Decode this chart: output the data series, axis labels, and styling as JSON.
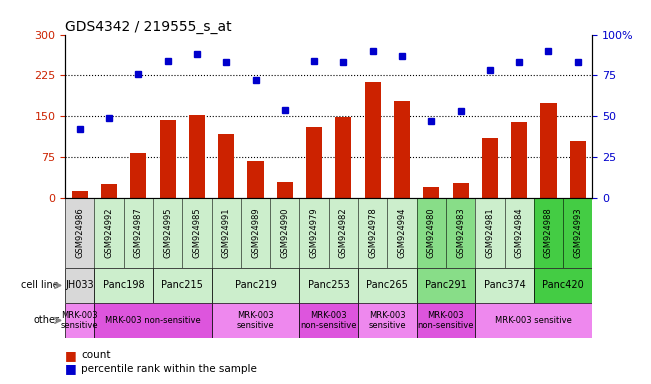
{
  "title": "GDS4342 / 219555_s_at",
  "samples": [
    "GSM924986",
    "GSM924992",
    "GSM924987",
    "GSM924995",
    "GSM924985",
    "GSM924991",
    "GSM924989",
    "GSM924990",
    "GSM924979",
    "GSM924982",
    "GSM924978",
    "GSM924994",
    "GSM924980",
    "GSM924983",
    "GSM924981",
    "GSM924984",
    "GSM924988",
    "GSM924993"
  ],
  "bar_values": [
    13,
    25,
    82,
    143,
    152,
    118,
    68,
    30,
    130,
    148,
    213,
    178,
    20,
    28,
    110,
    140,
    175,
    105
  ],
  "dot_values": [
    42,
    49,
    76,
    84,
    88,
    83,
    72,
    54,
    84,
    83,
    90,
    87,
    47,
    53,
    78,
    83,
    90,
    83
  ],
  "bar_color": "#cc2200",
  "dot_color": "#0000cc",
  "ylim_left": [
    0,
    300
  ],
  "ylim_right": [
    0,
    100
  ],
  "yticks_left": [
    0,
    75,
    150,
    225,
    300
  ],
  "yticks_right": [
    0,
    25,
    50,
    75,
    100
  ],
  "ytick_labels_left": [
    "0",
    "75",
    "150",
    "225",
    "300"
  ],
  "ytick_labels_right": [
    "0",
    "25",
    "50",
    "75",
    "100%"
  ],
  "hlines": [
    75,
    150,
    225
  ],
  "cell_line_order": [
    "JH033",
    "Panc198",
    "Panc215",
    "Panc219",
    "Panc253",
    "Panc265",
    "Panc291",
    "Panc374",
    "Panc420"
  ],
  "cell_lines": {
    "JH033": {
      "samples": [
        "GSM924986"
      ],
      "color": "#d8d8d8"
    },
    "Panc198": {
      "samples": [
        "GSM924992",
        "GSM924987"
      ],
      "color": "#cceecc"
    },
    "Panc215": {
      "samples": [
        "GSM924995",
        "GSM924985"
      ],
      "color": "#cceecc"
    },
    "Panc219": {
      "samples": [
        "GSM924991",
        "GSM924989",
        "GSM924990"
      ],
      "color": "#cceecc"
    },
    "Panc253": {
      "samples": [
        "GSM924979",
        "GSM924982"
      ],
      "color": "#cceecc"
    },
    "Panc265": {
      "samples": [
        "GSM924978",
        "GSM924994"
      ],
      "color": "#cceecc"
    },
    "Panc291": {
      "samples": [
        "GSM924980",
        "GSM924983"
      ],
      "color": "#88dd88"
    },
    "Panc374": {
      "samples": [
        "GSM924981",
        "GSM924984"
      ],
      "color": "#cceecc"
    },
    "Panc420": {
      "samples": [
        "GSM924988",
        "GSM924993"
      ],
      "color": "#44cc44"
    }
  },
  "other_spans": [
    {
      "text": "MRK-003\nsensitive",
      "cls": [
        "JH033"
      ],
      "color": "#ee88ee"
    },
    {
      "text": "MRK-003 non-sensitive",
      "cls": [
        "Panc198",
        "Panc215"
      ],
      "color": "#dd55dd"
    },
    {
      "text": "MRK-003\nsensitive",
      "cls": [
        "Panc219"
      ],
      "color": "#ee88ee"
    },
    {
      "text": "MRK-003\nnon-sensitive",
      "cls": [
        "Panc253"
      ],
      "color": "#dd55dd"
    },
    {
      "text": "MRK-003\nsensitive",
      "cls": [
        "Panc265"
      ],
      "color": "#ee88ee"
    },
    {
      "text": "MRK-003\nnon-sensitive",
      "cls": [
        "Panc291"
      ],
      "color": "#dd55dd"
    },
    {
      "text": "MRK-003 sensitive",
      "cls": [
        "Panc374",
        "Panc420"
      ],
      "color": "#ee88ee"
    }
  ],
  "xtick_bg": "#d8d8d8"
}
